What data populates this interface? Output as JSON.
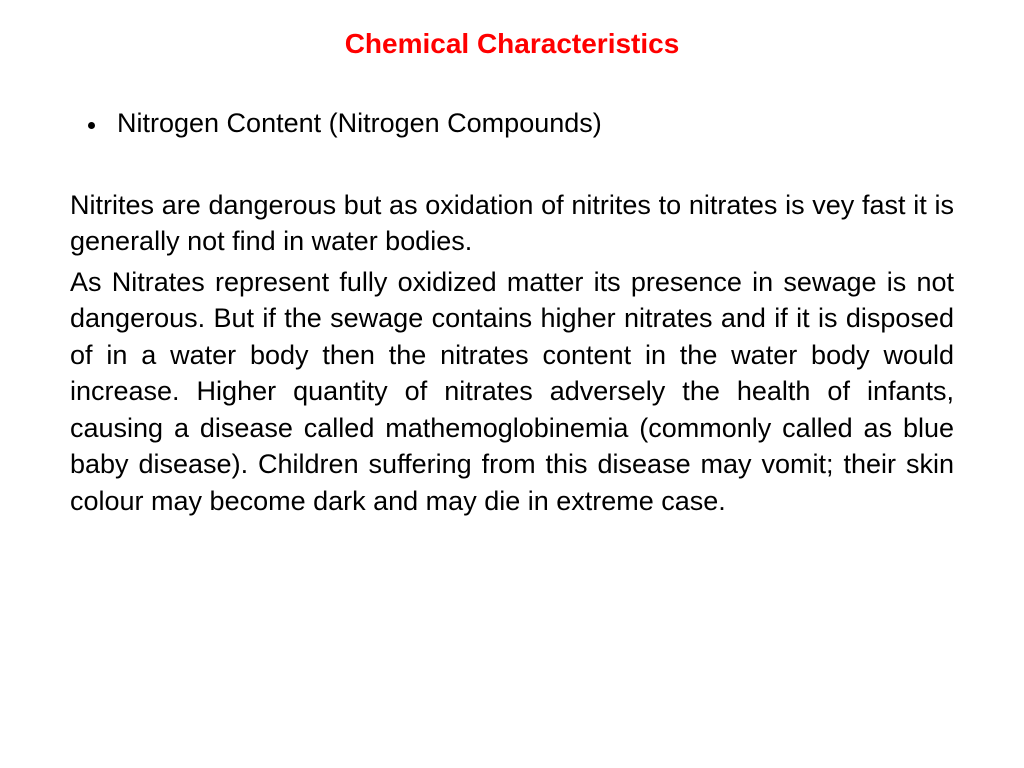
{
  "title": {
    "text": "Chemical Characteristics",
    "color": "#ff0000",
    "fontsize": 28
  },
  "bullet": {
    "text": "Nitrogen Content (Nitrogen Compounds)",
    "fontsize": 27,
    "color": "#000000"
  },
  "paragraph1": {
    "text": "Nitrites are dangerous but as oxidation of nitrites to nitrates is vey fast it is generally not find in water bodies.",
    "fontsize": 27,
    "line_height": 1.35
  },
  "paragraph2": {
    "text": "As Nitrates represent fully oxidized matter its presence in sewage is not dangerous. But if the sewage contains higher nitrates and if it is disposed of in a water body then the nitrates content in the water body would increase. Higher quantity of nitrates adversely the health of infants, causing a disease called mathemoglobinemia (commonly called as blue baby disease). Children suffering from this disease may vomit; their skin colour may become dark and may die in extreme case.",
    "fontsize": 27,
    "line_height": 1.35
  },
  "background_color": "#ffffff"
}
